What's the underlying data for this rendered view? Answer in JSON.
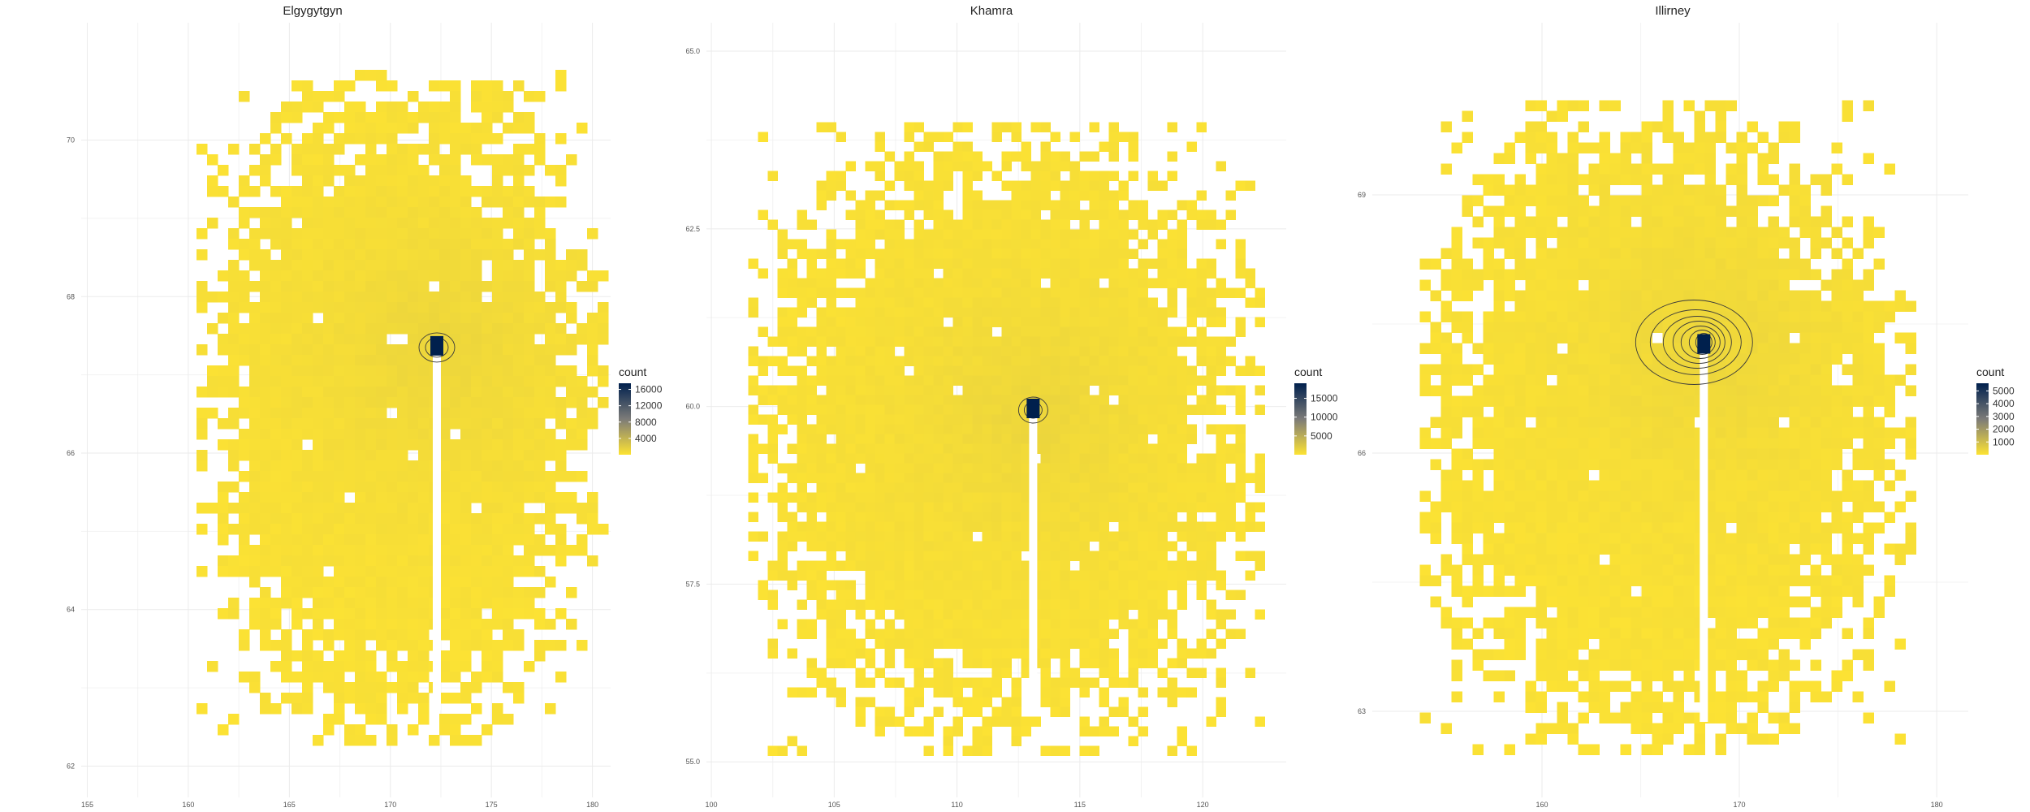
{
  "colors": {
    "low": "#FDE333",
    "high": "#00204D",
    "background": "#FFFFFF",
    "grid": "#EBEBEB",
    "contour": "#3A3A3A"
  },
  "chart_data": [
    {
      "type": "heatmap",
      "title": "Elgygytgyn",
      "xlabel": "",
      "ylabel": "",
      "xlim": [
        154.7,
        180.9
      ],
      "ylim": [
        61.6,
        71.5
      ],
      "x_ticks": [
        155,
        160,
        165,
        170,
        175,
        180
      ],
      "y_ticks": [
        62,
        64,
        66,
        68,
        70
      ],
      "x_tick_labels": [
        "155",
        "160",
        "165",
        "170",
        "175",
        "180"
      ],
      "y_tick_labels": [
        "62",
        "64",
        "66",
        "68",
        "70"
      ],
      "grid": true,
      "legend": {
        "title": "count",
        "position": "right",
        "breaks": [
          16000,
          12000,
          8000,
          4000
        ],
        "labels": [
          "16000",
          "12000",
          "8000",
          "4000"
        ],
        "range": [
          0,
          17500
        ]
      },
      "peak": {
        "x": 172.3,
        "y": 67.35,
        "count": 17500
      },
      "count_range": [
        1,
        17500
      ],
      "footprint": {
        "lon_range": [
          160.4,
          180.3
        ],
        "lat_range": [
          62.3,
          70.9
        ],
        "shape": "blocky region of grid cells centred on the peak with ragged edges"
      }
    },
    {
      "type": "heatmap",
      "title": "Khamra",
      "xlabel": "",
      "ylabel": "",
      "xlim": [
        99.8,
        123.4
      ],
      "ylim": [
        54.5,
        65.4
      ],
      "x_ticks": [
        100,
        105,
        110,
        115,
        120
      ],
      "y_ticks": [
        55.0,
        57.5,
        60.0,
        62.5,
        65.0
      ],
      "x_tick_labels": [
        "100",
        "105",
        "110",
        "115",
        "120"
      ],
      "y_tick_labels": [
        "55.0",
        "57.5",
        "60.0",
        "62.5",
        "65.0"
      ],
      "grid": true,
      "legend": {
        "title": "count",
        "position": "right",
        "breaks": [
          15000,
          10000,
          5000
        ],
        "labels": [
          "15000",
          "10000",
          "5000"
        ],
        "range": [
          0,
          19000
        ]
      },
      "peak": {
        "x": 113.1,
        "y": 59.95,
        "count": 19000
      },
      "count_range": [
        1,
        19000
      ],
      "footprint": {
        "lon_range": [
          101.5,
          122.5
        ],
        "lat_range": [
          55.2,
          64.0
        ],
        "shape": "blocky region of grid cells centred on the peak with ragged edges"
      }
    },
    {
      "type": "heatmap",
      "title": "Illirney",
      "xlabel": "",
      "ylabel": "",
      "xlim": [
        151.4,
        181.6
      ],
      "ylim": [
        62.0,
        71.0
      ],
      "x_ticks": [
        160,
        170,
        180
      ],
      "y_ticks": [
        63,
        66,
        69
      ],
      "x_tick_labels": [
        "160",
        "170",
        "180"
      ],
      "y_tick_labels": [
        "63",
        "66",
        "69"
      ],
      "grid": true,
      "legend": {
        "title": "count",
        "position": "right",
        "breaks": [
          5000,
          4000,
          3000,
          2000,
          1000
        ],
        "labels": [
          "5000",
          "4000",
          "3000",
          "2000",
          "1000"
        ],
        "range": [
          0,
          5600
        ]
      },
      "peak": {
        "x": 168.2,
        "y": 67.25,
        "count": 5600
      },
      "count_range": [
        1,
        5600
      ],
      "footprint": {
        "lon_range": [
          153.8,
          178.5
        ],
        "lat_range": [
          62.5,
          70.1
        ],
        "shape": "blocky region of grid cells centred on the peak with ragged edges"
      }
    }
  ]
}
